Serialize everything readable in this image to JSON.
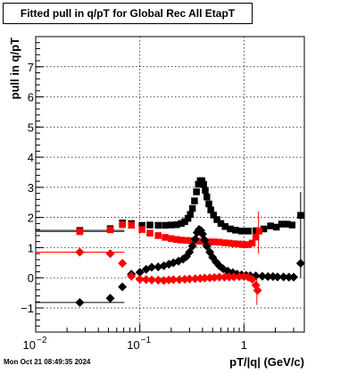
{
  "chart_data": {
    "type": "scatter",
    "title": "Fitted pull in q/pT for Global Rec All EtapT",
    "xlabel": "pT/|q| (GeV/c)",
    "ylabel": "pull in q/pT",
    "xscale": "log",
    "xlim": [
      0.01,
      3.8
    ],
    "ylim": [
      -1.8,
      8
    ],
    "grid": true,
    "xticks": [
      {
        "value": 0.01,
        "base": "10",
        "exp": "−2"
      },
      {
        "value": 0.1,
        "base": "10",
        "exp": "−1"
      },
      {
        "value": 1,
        "base": "1",
        "exp": ""
      }
    ],
    "yticks": [
      {
        "value": -1,
        "label": "−1"
      },
      {
        "value": 0,
        "label": "0"
      },
      {
        "value": 1,
        "label": "1"
      },
      {
        "value": 2,
        "label": "2"
      },
      {
        "value": 3,
        "label": "3"
      },
      {
        "value": 4,
        "label": "4"
      },
      {
        "value": 5,
        "label": "5"
      },
      {
        "value": 6,
        "label": "6"
      },
      {
        "value": 7,
        "label": "7"
      }
    ],
    "series": [
      {
        "marker": "square",
        "color": "#000000",
        "points": [
          [
            0.0265,
            1.57
          ],
          [
            0.052,
            1.63
          ],
          [
            0.068,
            1.82
          ],
          [
            0.083,
            1.8
          ],
          [
            0.105,
            1.74
          ],
          [
            0.125,
            1.75
          ],
          [
            0.15,
            1.74
          ],
          [
            0.175,
            1.74
          ],
          [
            0.2,
            1.75
          ],
          [
            0.225,
            1.76
          ],
          [
            0.25,
            1.8
          ],
          [
            0.27,
            1.86
          ],
          [
            0.29,
            1.97
          ],
          [
            0.305,
            2.1
          ],
          [
            0.32,
            2.3
          ],
          [
            0.335,
            2.55
          ],
          [
            0.35,
            2.85
          ],
          [
            0.365,
            3.1
          ],
          [
            0.38,
            3.22
          ],
          [
            0.395,
            3.22
          ],
          [
            0.41,
            3.1
          ],
          [
            0.425,
            2.9
          ],
          [
            0.44,
            2.68
          ],
          [
            0.46,
            2.45
          ],
          [
            0.48,
            2.25
          ],
          [
            0.51,
            2.08
          ],
          [
            0.55,
            1.93
          ],
          [
            0.6,
            1.8
          ],
          [
            0.66,
            1.7
          ],
          [
            0.74,
            1.62
          ],
          [
            0.83,
            1.58
          ],
          [
            0.95,
            1.55
          ],
          [
            1.1,
            1.55
          ],
          [
            1.3,
            1.56
          ],
          [
            1.55,
            1.62
          ],
          [
            1.8,
            1.72
          ],
          [
            2.05,
            1.68
          ],
          [
            2.3,
            1.78
          ],
          [
            2.6,
            1.78
          ],
          [
            2.9,
            1.75
          ],
          [
            3.5,
            2.07
          ]
        ]
      },
      {
        "marker": "square",
        "color": "#ff0000",
        "points": [
          [
            0.0265,
            1.53
          ],
          [
            0.052,
            1.59
          ],
          [
            0.068,
            1.76
          ],
          [
            0.083,
            1.74
          ],
          [
            0.105,
            1.6
          ],
          [
            0.125,
            1.48
          ],
          [
            0.15,
            1.4
          ],
          [
            0.175,
            1.34
          ],
          [
            0.2,
            1.3
          ],
          [
            0.225,
            1.27
          ],
          [
            0.25,
            1.25
          ],
          [
            0.28,
            1.24
          ],
          [
            0.31,
            1.23
          ],
          [
            0.34,
            1.22
          ],
          [
            0.38,
            1.21
          ],
          [
            0.42,
            1.2
          ],
          [
            0.47,
            1.19
          ],
          [
            0.52,
            1.19
          ],
          [
            0.58,
            1.18
          ],
          [
            0.65,
            1.16
          ],
          [
            0.72,
            1.15
          ],
          [
            0.8,
            1.13
          ],
          [
            0.9,
            1.12
          ],
          [
            1.0,
            1.1
          ],
          [
            1.1,
            1.1
          ],
          [
            1.2,
            1.15
          ],
          [
            1.3,
            1.35
          ],
          [
            1.4,
            1.55
          ]
        ]
      },
      {
        "marker": "circle",
        "color": "#000000",
        "points": [
          [
            0.0265,
            -0.82
          ],
          [
            0.052,
            -0.68
          ],
          [
            0.068,
            -0.3
          ],
          [
            0.083,
            0.12
          ],
          [
            0.1,
            0.18
          ],
          [
            0.115,
            0.28
          ],
          [
            0.13,
            0.35
          ],
          [
            0.15,
            0.36
          ],
          [
            0.17,
            0.4
          ],
          [
            0.19,
            0.45
          ],
          [
            0.21,
            0.5
          ],
          [
            0.235,
            0.55
          ],
          [
            0.26,
            0.62
          ],
          [
            0.28,
            0.7
          ],
          [
            0.3,
            0.85
          ],
          [
            0.32,
            1.05
          ],
          [
            0.34,
            1.28
          ],
          [
            0.355,
            1.5
          ],
          [
            0.37,
            1.6
          ],
          [
            0.385,
            1.57
          ],
          [
            0.4,
            1.45
          ],
          [
            0.42,
            1.25
          ],
          [
            0.44,
            1.05
          ],
          [
            0.47,
            0.85
          ],
          [
            0.5,
            0.68
          ],
          [
            0.54,
            0.52
          ],
          [
            0.58,
            0.4
          ],
          [
            0.63,
            0.3
          ],
          [
            0.7,
            0.22
          ],
          [
            0.78,
            0.17
          ],
          [
            0.86,
            0.12
          ],
          [
            0.95,
            0.1
          ],
          [
            1.05,
            0.08
          ],
          [
            1.15,
            0.07
          ],
          [
            1.3,
            0.06
          ],
          [
            1.5,
            0.05
          ],
          [
            1.7,
            0.04
          ],
          [
            1.9,
            0.04
          ],
          [
            2.1,
            0.03
          ],
          [
            2.4,
            0.03
          ],
          [
            2.7,
            0.02
          ],
          [
            3.0,
            0.02
          ],
          [
            3.5,
            0.48
          ]
        ]
      },
      {
        "marker": "circle",
        "color": "#ff0000",
        "points": [
          [
            0.0265,
            0.85
          ],
          [
            0.052,
            0.8
          ],
          [
            0.068,
            0.48
          ],
          [
            0.083,
            0.05
          ],
          [
            0.1,
            -0.05
          ],
          [
            0.115,
            -0.06
          ],
          [
            0.13,
            -0.07
          ],
          [
            0.15,
            -0.08
          ],
          [
            0.17,
            -0.09
          ],
          [
            0.19,
            -0.07
          ],
          [
            0.21,
            -0.06
          ],
          [
            0.24,
            -0.06
          ],
          [
            0.27,
            -0.05
          ],
          [
            0.3,
            -0.04
          ],
          [
            0.34,
            -0.03
          ],
          [
            0.38,
            -0.02
          ],
          [
            0.42,
            -0.01
          ],
          [
            0.47,
            0.0
          ],
          [
            0.52,
            0.01
          ],
          [
            0.58,
            0.02
          ],
          [
            0.65,
            0.02
          ],
          [
            0.72,
            0.03
          ],
          [
            0.8,
            0.03
          ],
          [
            0.9,
            0.04
          ],
          [
            1.0,
            0.04
          ],
          [
            1.1,
            0.02
          ],
          [
            1.2,
            -0.05
          ],
          [
            1.3,
            -0.25
          ],
          [
            1.35,
            -0.42
          ]
        ]
      }
    ]
  },
  "footer": {
    "timestamp": "Mon Oct 21 08:49:35 2024"
  }
}
